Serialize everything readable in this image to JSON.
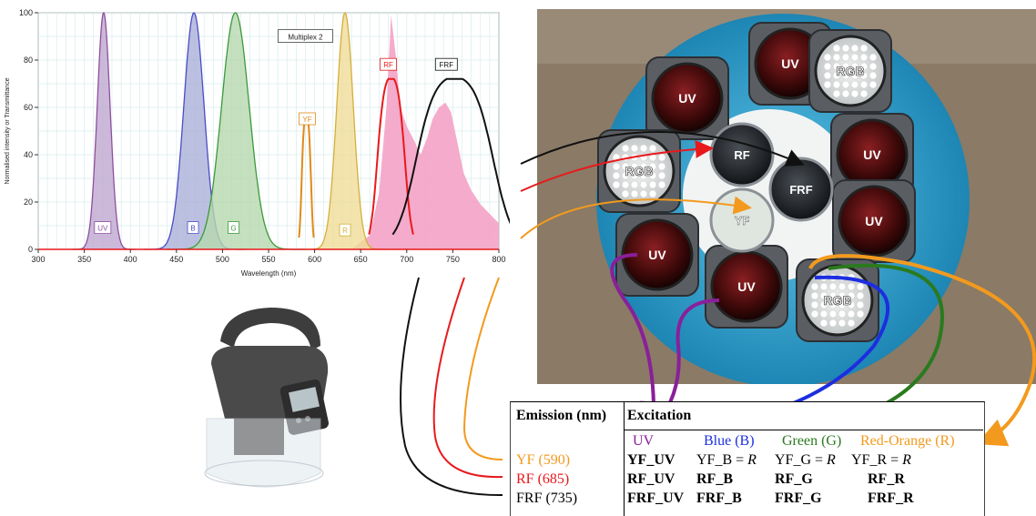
{
  "chart_data": {
    "type": "area",
    "ylabel": "Normalised intensity or Transmittance",
    "xlabel": "Wavelength (nm)",
    "xlim": [
      300,
      800
    ],
    "ylim": [
      0,
      100
    ],
    "xticks": [
      300,
      350,
      400,
      450,
      500,
      550,
      600,
      650,
      700,
      750,
      800
    ],
    "yticks": [
      0,
      20,
      40,
      60,
      80,
      100
    ],
    "grid": true,
    "annotation": "Multiplex 2",
    "series": [
      {
        "name": "UV",
        "kind": "led",
        "color": "#8e4f9e",
        "fill": "#bfa8cf",
        "peak": 371,
        "height": 100,
        "width": 7
      },
      {
        "name": "B",
        "kind": "led",
        "color": "#4b4bc8",
        "fill": "#aab0d8",
        "peak": 469,
        "height": 100,
        "width": 11
      },
      {
        "name": "G",
        "kind": "led",
        "color": "#3a9a3a",
        "fill": "#b6d8ae",
        "peak": 514,
        "height": 100,
        "width": 15
      },
      {
        "name": "R",
        "kind": "led",
        "color": "#d4b03a",
        "fill": "#f0dc98",
        "peak": 633,
        "height": 100,
        "width": 9
      },
      {
        "name": "YF",
        "kind": "filter",
        "color": "#e08a1a",
        "center": 591,
        "height": 57,
        "width": 5
      },
      {
        "name": "RF",
        "kind": "filter",
        "color": "#e8191c",
        "center": 683,
        "height": 72,
        "width": 15
      },
      {
        "name": "FRF",
        "kind": "filter",
        "color": "#111111",
        "center": 752,
        "height": 72,
        "width": 42
      },
      {
        "name": "",
        "kind": "background",
        "color": "#f4a6c8",
        "x": [
          640,
          660,
          670,
          678,
          683,
          688,
          693,
          700,
          708,
          715,
          722,
          728,
          735,
          742,
          748,
          755,
          762,
          770,
          780,
          790,
          800
        ],
        "y": [
          0,
          6,
          24,
          60,
          99,
          82,
          60,
          52,
          46,
          40,
          47,
          55,
          60,
          62,
          58,
          45,
          32,
          25,
          19,
          15,
          11
        ]
      }
    ],
    "labels": [
      {
        "text": "UV",
        "x": 370,
        "y": 9,
        "color": "#8e4f9e"
      },
      {
        "text": "B",
        "x": 468,
        "y": 9,
        "color": "#4b4bc8"
      },
      {
        "text": "G",
        "x": 512,
        "y": 9,
        "color": "#3a9a3a"
      },
      {
        "text": "YF",
        "x": 592,
        "y": 55,
        "color": "#e08a1a"
      },
      {
        "text": "R",
        "x": 633,
        "y": 8,
        "color": "#d4b03a"
      },
      {
        "text": "RF",
        "x": 680,
        "y": 78,
        "color": "#e8191c"
      },
      {
        "text": "FRF",
        "x": 743,
        "y": 78,
        "color": "#111111"
      }
    ]
  },
  "photo": {
    "outer_leds": [
      "UV",
      "RGB",
      "UV",
      "UV",
      "UV",
      "RGB",
      "UV",
      "RGB"
    ],
    "inner_filters": [
      "RF",
      "FRF",
      "YF"
    ]
  },
  "table": {
    "header_emission": "Emission (nm)",
    "header_excitation": "Excitation",
    "col_uv": "UV",
    "col_blue": "Blue (B)",
    "col_green": "Green (G)",
    "col_red": "Red-Orange (R)",
    "row_yf": "YF (590)",
    "row_rf": "RF (685)",
    "row_frf": "FRF (735)",
    "yf_uv": "YF_UV",
    "yf_b": "YF_B = ",
    "yf_g": "YF_G = ",
    "yf_r": "YF_R = ",
    "r_symbol": "R",
    "rf_uv": "RF_UV",
    "rf_b": "RF_B",
    "rf_g": "RF_G",
    "rf_r": "RF_R",
    "frf_uv": "FRF_UV",
    "frf_b": "FRF_B",
    "frf_g": "FRF_G",
    "frf_r": "FRF_R"
  }
}
